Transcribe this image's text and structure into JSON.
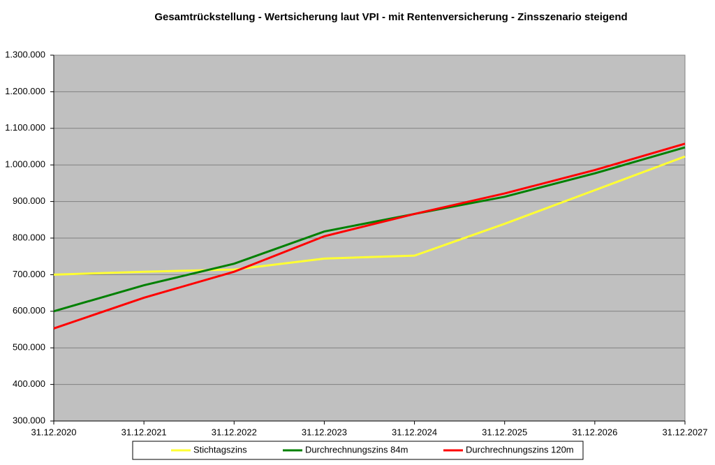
{
  "chart_data": {
    "type": "line",
    "title": "Gesamtrückstellung - Wertsicherung laut VPI - mit Rentenversicherung - Zinsszenario steigend",
    "categories": [
      "31.12.2020",
      "31.12.2021",
      "31.12.2022",
      "31.12.2023",
      "31.12.2024",
      "31.12.2025",
      "31.12.2026",
      "31.12.2027"
    ],
    "series": [
      {
        "name": "Stichtagszins",
        "color": "#ffff33",
        "values": [
          700000,
          708000,
          714000,
          744000,
          752000,
          839000,
          931000,
          1023000
        ]
      },
      {
        "name": "Durchrechnungszins 84m",
        "color": "#008000",
        "values": [
          600000,
          671000,
          730000,
          818000,
          866000,
          913000,
          977000,
          1048000
        ]
      },
      {
        "name": "Durchrechnungszins 120m",
        "color": "#ff0000",
        "values": [
          553000,
          637000,
          708000,
          805000,
          866000,
          922000,
          986000,
          1058000
        ]
      }
    ],
    "ylim": [
      300000,
      1300000
    ],
    "yticks": [
      {
        "value": 300000,
        "label": "300.000"
      },
      {
        "value": 400000,
        "label": "400.000"
      },
      {
        "value": 500000,
        "label": "500.000"
      },
      {
        "value": 600000,
        "label": "600.000"
      },
      {
        "value": 700000,
        "label": "700.000"
      },
      {
        "value": 800000,
        "label": "800.000"
      },
      {
        "value": 900000,
        "label": "900.000"
      },
      {
        "value": 1000000,
        "label": "1.000.000"
      },
      {
        "value": 1100000,
        "label": "1.100.000"
      },
      {
        "value": 1200000,
        "label": "1.200.000"
      },
      {
        "value": 1300000,
        "label": "1.300.000"
      }
    ],
    "grid": true,
    "legend": "bottom"
  }
}
